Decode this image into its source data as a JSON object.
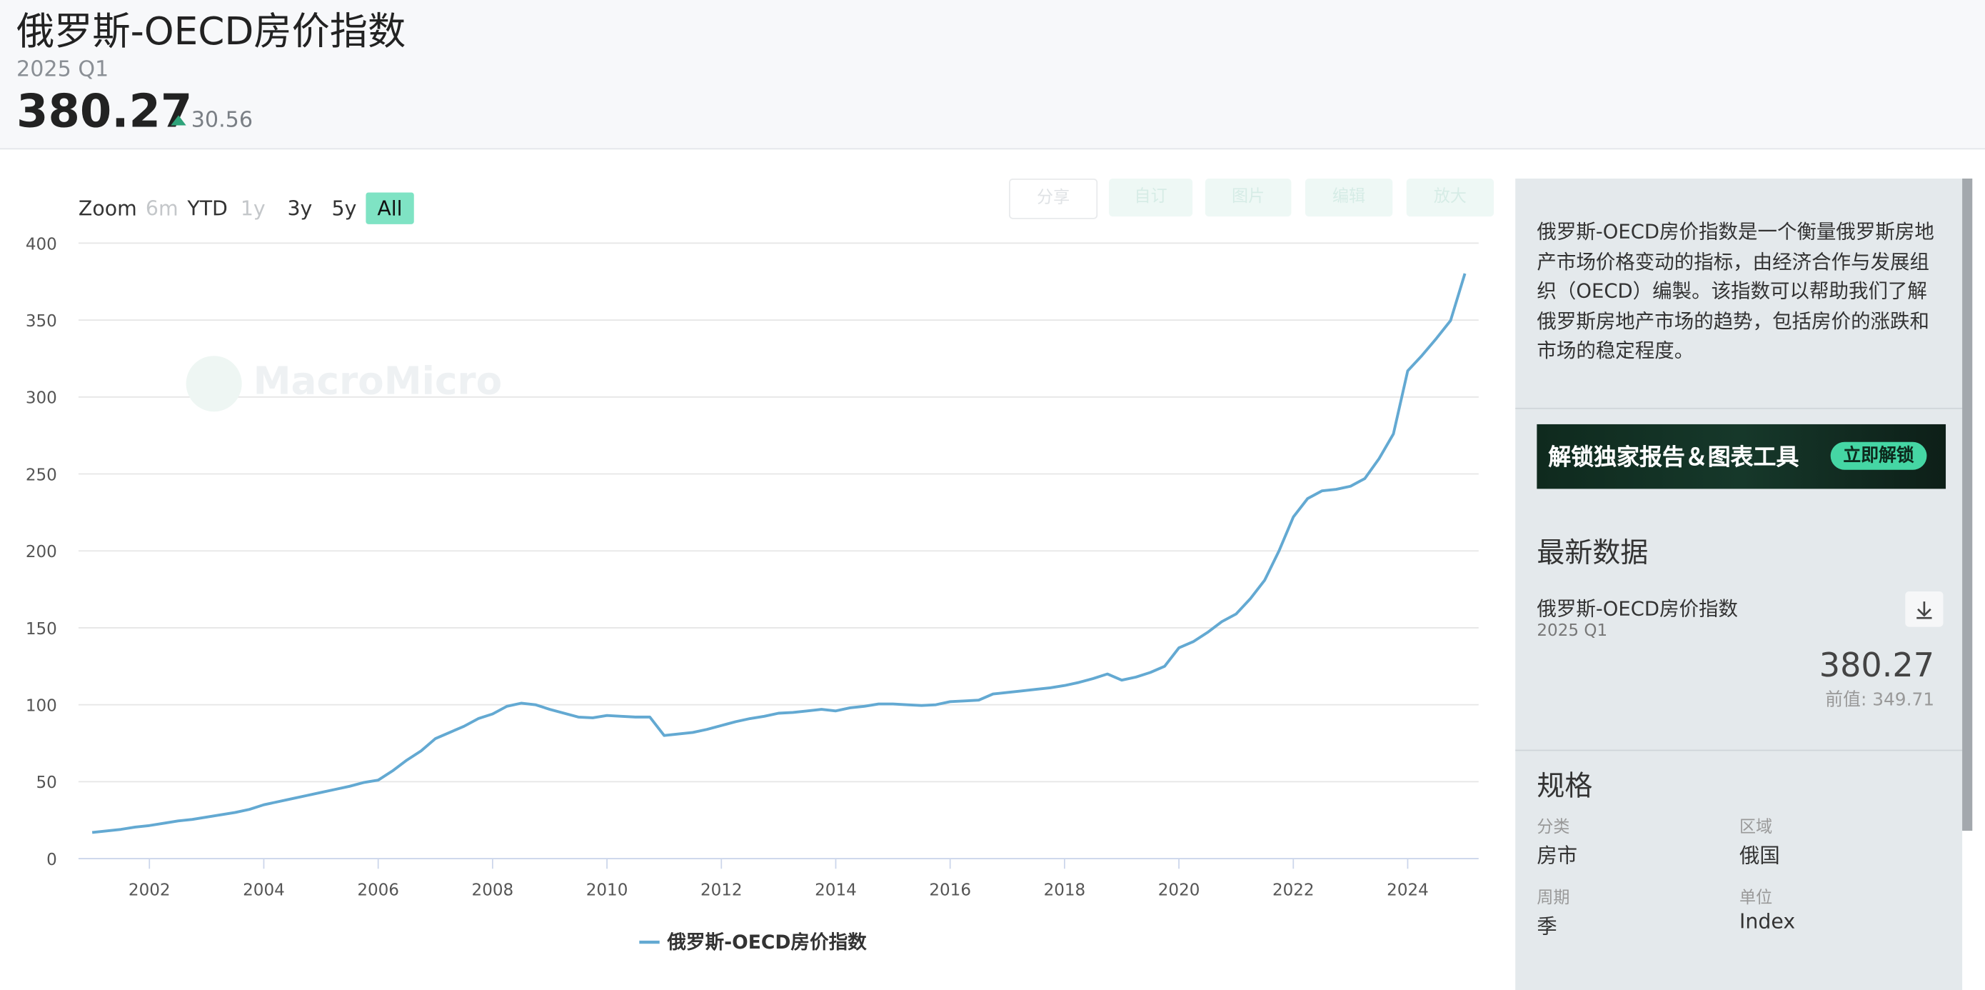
{
  "header": {
    "title": "俄罗斯-OECD房价指数",
    "period": "2025 Q1",
    "value": 380.27,
    "change": 30.56
  },
  "toolbar": {
    "zoom_label": "Zoom",
    "ranges": [
      "6m",
      "YTD",
      "1y",
      "3y",
      "5y",
      "All"
    ],
    "disabled": [
      0,
      2
    ],
    "active": 5,
    "buttons": [
      "分享",
      "自订",
      "图片",
      "编辑",
      "放大"
    ]
  },
  "watermark": "MacroMicro",
  "chart_data": {
    "type": "line",
    "x": [
      2001,
      2001.25,
      2001.5,
      2001.75,
      2002,
      2002.25,
      2002.5,
      2002.75,
      2003,
      2003.25,
      2003.5,
      2003.75,
      2004,
      2004.25,
      2004.5,
      2004.75,
      2005,
      2005.25,
      2005.5,
      2005.75,
      2006,
      2006.25,
      2006.5,
      2006.75,
      2007,
      2007.25,
      2007.5,
      2007.75,
      2008,
      2008.25,
      2008.5,
      2008.75,
      2009,
      2009.25,
      2009.5,
      2009.75,
      2010,
      2010.25,
      2010.5,
      2010.75,
      2011,
      2011.25,
      2011.5,
      2011.75,
      2012,
      2012.25,
      2012.5,
      2012.75,
      2013,
      2013.25,
      2013.5,
      2013.75,
      2014,
      2014.25,
      2014.5,
      2014.75,
      2015,
      2015.25,
      2015.5,
      2015.75,
      2016,
      2016.25,
      2016.5,
      2016.75,
      2017,
      2017.25,
      2017.5,
      2017.75,
      2018,
      2018.25,
      2018.5,
      2018.75,
      2019,
      2019.25,
      2019.5,
      2019.75,
      2020,
      2020.25,
      2020.5,
      2020.75,
      2021,
      2021.25,
      2021.5,
      2021.75,
      2022,
      2022.25,
      2022.5,
      2022.75,
      2023,
      2023.25,
      2023.5,
      2023.75,
      2024,
      2024.25,
      2024.5,
      2024.75,
      2025
    ],
    "series": [
      {
        "name": "俄罗斯-OECD房价指数",
        "color": "#63a9d2",
        "values": [
          17,
          18,
          19,
          20.5,
          21.5,
          23,
          24.5,
          25.5,
          27,
          28.5,
          30,
          32,
          35,
          37,
          39,
          41,
          43,
          45,
          47,
          49.5,
          51,
          57,
          64,
          70,
          78,
          82,
          86,
          91,
          94,
          99,
          101,
          100,
          97,
          94.5,
          92,
          91.5,
          93,
          92.5,
          92,
          92,
          80,
          81,
          82,
          84,
          86.5,
          89,
          91,
          92.5,
          94.5,
          95,
          96,
          97,
          96,
          98,
          99,
          100.5,
          100.5,
          100,
          99.5,
          100,
          102,
          102.5,
          103,
          107,
          108,
          109,
          110,
          111,
          112.5,
          114.5,
          117,
          120,
          116,
          118,
          121,
          125,
          137,
          141,
          147,
          154,
          159,
          169,
          181,
          200,
          222,
          234,
          239,
          240,
          242,
          247,
          260,
          276,
          317,
          327,
          338,
          349.71,
          380.27
        ]
      }
    ],
    "xlim": [
      2000.76,
      2025.24
    ],
    "xticks": [
      2002,
      2004,
      2006,
      2008,
      2010,
      2012,
      2014,
      2016,
      2018,
      2020,
      2022,
      2024
    ],
    "ylim": [
      0,
      400
    ],
    "yticks": [
      0,
      50,
      100,
      150,
      200,
      250,
      300,
      350,
      400
    ],
    "grid": true
  },
  "sidebar": {
    "description": "俄罗斯-OECD房价指数是一个衡量俄罗斯房地产市场价格变动的指标，由经济合作与发展组织（OECD）编製。该指数可以帮助我们了解俄罗斯房地产市场的趋势，包括房价的涨跌和市场的稳定程度。",
    "banner": {
      "text": "解锁独家报告＆图表工具",
      "button": "立即解锁"
    },
    "latest": {
      "heading": "最新数据",
      "name": "俄罗斯-OECD房价指数",
      "period": "2025 Q1",
      "value": 380.27,
      "previous_label": "前值:",
      "previous": 349.71
    },
    "spec": {
      "heading": "规格",
      "items": [
        {
          "label": "分类",
          "value": "房市"
        },
        {
          "label": "区域",
          "value": "俄国"
        },
        {
          "label": "周期",
          "value": "季"
        },
        {
          "label": "单位",
          "value": "Index"
        }
      ]
    }
  }
}
